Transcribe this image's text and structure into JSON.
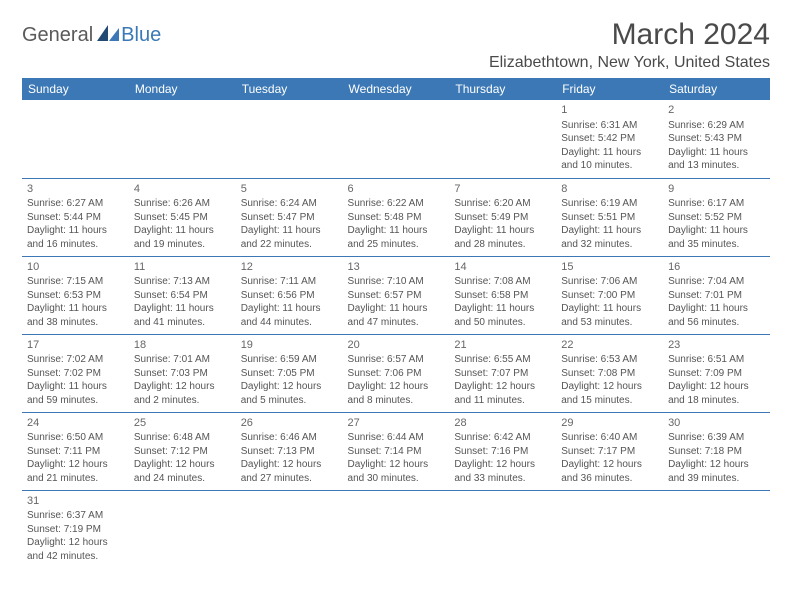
{
  "brand": {
    "part1": "General",
    "part2": "Blue"
  },
  "title": "March 2024",
  "location": "Elizabethtown, New York, United States",
  "day_headers": [
    "Sunday",
    "Monday",
    "Tuesday",
    "Wednesday",
    "Thursday",
    "Friday",
    "Saturday"
  ],
  "colors": {
    "header_bg": "#3b78b5",
    "header_text": "#ffffff",
    "border": "#3b78b5",
    "logo_gray": "#5a5a5a",
    "logo_blue": "#3b78b5",
    "text": "#555555"
  },
  "layout": {
    "first_weekday_index": 5,
    "days_in_month": 31,
    "rows": 6
  },
  "days": {
    "1": {
      "sunrise": "6:31 AM",
      "sunset": "5:42 PM",
      "daylight": "11 hours and 10 minutes."
    },
    "2": {
      "sunrise": "6:29 AM",
      "sunset": "5:43 PM",
      "daylight": "11 hours and 13 minutes."
    },
    "3": {
      "sunrise": "6:27 AM",
      "sunset": "5:44 PM",
      "daylight": "11 hours and 16 minutes."
    },
    "4": {
      "sunrise": "6:26 AM",
      "sunset": "5:45 PM",
      "daylight": "11 hours and 19 minutes."
    },
    "5": {
      "sunrise": "6:24 AM",
      "sunset": "5:47 PM",
      "daylight": "11 hours and 22 minutes."
    },
    "6": {
      "sunrise": "6:22 AM",
      "sunset": "5:48 PM",
      "daylight": "11 hours and 25 minutes."
    },
    "7": {
      "sunrise": "6:20 AM",
      "sunset": "5:49 PM",
      "daylight": "11 hours and 28 minutes."
    },
    "8": {
      "sunrise": "6:19 AM",
      "sunset": "5:51 PM",
      "daylight": "11 hours and 32 minutes."
    },
    "9": {
      "sunrise": "6:17 AM",
      "sunset": "5:52 PM",
      "daylight": "11 hours and 35 minutes."
    },
    "10": {
      "sunrise": "7:15 AM",
      "sunset": "6:53 PM",
      "daylight": "11 hours and 38 minutes."
    },
    "11": {
      "sunrise": "7:13 AM",
      "sunset": "6:54 PM",
      "daylight": "11 hours and 41 minutes."
    },
    "12": {
      "sunrise": "7:11 AM",
      "sunset": "6:56 PM",
      "daylight": "11 hours and 44 minutes."
    },
    "13": {
      "sunrise": "7:10 AM",
      "sunset": "6:57 PM",
      "daylight": "11 hours and 47 minutes."
    },
    "14": {
      "sunrise": "7:08 AM",
      "sunset": "6:58 PM",
      "daylight": "11 hours and 50 minutes."
    },
    "15": {
      "sunrise": "7:06 AM",
      "sunset": "7:00 PM",
      "daylight": "11 hours and 53 minutes."
    },
    "16": {
      "sunrise": "7:04 AM",
      "sunset": "7:01 PM",
      "daylight": "11 hours and 56 minutes."
    },
    "17": {
      "sunrise": "7:02 AM",
      "sunset": "7:02 PM",
      "daylight": "11 hours and 59 minutes."
    },
    "18": {
      "sunrise": "7:01 AM",
      "sunset": "7:03 PM",
      "daylight": "12 hours and 2 minutes."
    },
    "19": {
      "sunrise": "6:59 AM",
      "sunset": "7:05 PM",
      "daylight": "12 hours and 5 minutes."
    },
    "20": {
      "sunrise": "6:57 AM",
      "sunset": "7:06 PM",
      "daylight": "12 hours and 8 minutes."
    },
    "21": {
      "sunrise": "6:55 AM",
      "sunset": "7:07 PM",
      "daylight": "12 hours and 11 minutes."
    },
    "22": {
      "sunrise": "6:53 AM",
      "sunset": "7:08 PM",
      "daylight": "12 hours and 15 minutes."
    },
    "23": {
      "sunrise": "6:51 AM",
      "sunset": "7:09 PM",
      "daylight": "12 hours and 18 minutes."
    },
    "24": {
      "sunrise": "6:50 AM",
      "sunset": "7:11 PM",
      "daylight": "12 hours and 21 minutes."
    },
    "25": {
      "sunrise": "6:48 AM",
      "sunset": "7:12 PM",
      "daylight": "12 hours and 24 minutes."
    },
    "26": {
      "sunrise": "6:46 AM",
      "sunset": "7:13 PM",
      "daylight": "12 hours and 27 minutes."
    },
    "27": {
      "sunrise": "6:44 AM",
      "sunset": "7:14 PM",
      "daylight": "12 hours and 30 minutes."
    },
    "28": {
      "sunrise": "6:42 AM",
      "sunset": "7:16 PM",
      "daylight": "12 hours and 33 minutes."
    },
    "29": {
      "sunrise": "6:40 AM",
      "sunset": "7:17 PM",
      "daylight": "12 hours and 36 minutes."
    },
    "30": {
      "sunrise": "6:39 AM",
      "sunset": "7:18 PM",
      "daylight": "12 hours and 39 minutes."
    },
    "31": {
      "sunrise": "6:37 AM",
      "sunset": "7:19 PM",
      "daylight": "12 hours and 42 minutes."
    }
  },
  "labels": {
    "sunrise_prefix": "Sunrise: ",
    "sunset_prefix": "Sunset: ",
    "daylight_prefix": "Daylight: "
  }
}
